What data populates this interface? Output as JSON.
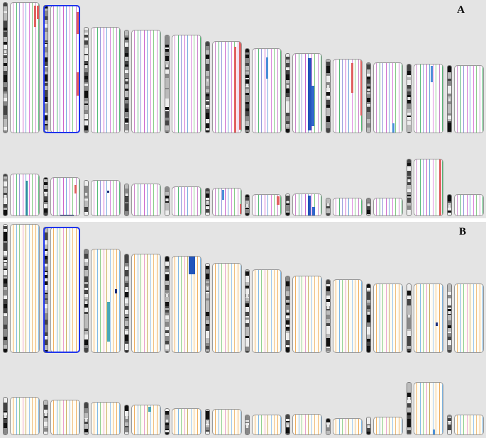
{
  "panels": [
    {
      "label": "A",
      "palette": [
        "#cc88cc",
        "#55bb77",
        "#9999dd",
        "#cc66cc",
        "#77aadd",
        "#dd88dd",
        "#88cc88"
      ],
      "bg": "#ffffff",
      "rows": [
        {
          "chromosomes": [
            {
              "h": 1.0,
              "w": 1.0,
              "features": [
                {
                  "c": "#e06060",
                  "t": 0.02,
                  "b": 0.18,
                  "x": 0.78,
                  "w": 0.08
                },
                {
                  "c": "#e06060",
                  "t": 0.02,
                  "b": 0.12,
                  "x": 0.88,
                  "w": 0.06
                }
              ]
            },
            {
              "h": 0.98,
              "w": 1.0,
              "selected": true,
              "features": [
                {
                  "c": "#e06060",
                  "t": 0.05,
                  "b": 0.22,
                  "x": 0.85,
                  "w": 0.08
                },
                {
                  "c": "#e06060",
                  "t": 0.52,
                  "b": 0.7,
                  "x": 0.85,
                  "w": 0.08
                }
              ]
            },
            {
              "h": 0.81,
              "w": 1.0,
              "features": []
            },
            {
              "h": 0.79,
              "w": 1.0,
              "features": []
            },
            {
              "h": 0.75,
              "w": 1.0,
              "features": []
            },
            {
              "h": 0.7,
              "w": 1.0,
              "features": [
                {
                  "c": "#e06060",
                  "t": 0.05,
                  "b": 1.0,
                  "x": 0.72,
                  "w": 0.08
                },
                {
                  "c": "#e06060",
                  "t": 0.0,
                  "b": 0.95,
                  "x": 0.88,
                  "w": 0.05
                }
              ]
            },
            {
              "h": 0.65,
              "w": 1.0,
              "features": [
                {
                  "c": "#4a8fd8",
                  "t": 0.1,
                  "b": 0.35,
                  "x": 0.46,
                  "w": 0.08
                }
              ]
            },
            {
              "h": 0.61,
              "w": 1.0,
              "features": [
                {
                  "c": "#2255bb",
                  "t": 0.05,
                  "b": 0.95,
                  "x": 0.5,
                  "w": 0.12
                },
                {
                  "c": "#3366cc",
                  "t": 0.4,
                  "b": 0.9,
                  "x": 0.62,
                  "w": 0.1
                }
              ]
            },
            {
              "h": 0.57,
              "w": 1.0,
              "features": [
                {
                  "c": "#e06060",
                  "t": 0.05,
                  "b": 0.45,
                  "x": 0.6,
                  "w": 0.08
                },
                {
                  "c": "#e06060",
                  "t": 0.0,
                  "b": 0.75,
                  "x": 0.9,
                  "w": 0.06
                }
              ]
            },
            {
              "h": 0.54,
              "w": 1.0,
              "features": [
                {
                  "c": "#4a8fd8",
                  "t": 0.85,
                  "b": 1.0,
                  "x": 0.62,
                  "w": 0.08
                }
              ]
            },
            {
              "h": 0.53,
              "w": 1.0,
              "features": [
                {
                  "c": "#4a8fd8",
                  "t": 0.02,
                  "b": 0.25,
                  "x": 0.55,
                  "w": 0.07
                }
              ]
            },
            {
              "h": 0.52,
              "w": 1.0,
              "features": []
            }
          ]
        },
        {
          "chromosomes": [
            {
              "h": 0.53,
              "w": 1.0,
              "features": [
                {
                  "c": "#2c8fa0",
                  "t": 0.15,
                  "b": 0.98,
                  "x": 0.5,
                  "w": 0.05
                }
              ]
            },
            {
              "h": 0.49,
              "w": 1.0,
              "features": [
                {
                  "c": "#e06060",
                  "t": 0.18,
                  "b": 0.4,
                  "x": 0.78,
                  "w": 0.08
                },
                {
                  "c": "#1a2d7a",
                  "t": 0.95,
                  "b": 1.0,
                  "x": 0.3,
                  "w": 0.45
                }
              ]
            },
            {
              "h": 0.45,
              "w": 1.0,
              "features": [
                {
                  "c": "#1a2d7a",
                  "t": 0.28,
                  "b": 0.33,
                  "x": 0.52,
                  "w": 0.06
                }
              ]
            },
            {
              "h": 0.41,
              "w": 1.0,
              "features": []
            },
            {
              "h": 0.37,
              "w": 1.0,
              "features": []
            },
            {
              "h": 0.35,
              "w": 1.0,
              "features": [
                {
                  "c": "#4a8fd8",
                  "t": 0.05,
                  "b": 0.4,
                  "x": 0.3,
                  "w": 0.08
                },
                {
                  "c": "#e06060",
                  "t": 0.55,
                  "b": 0.9,
                  "x": 0.9,
                  "w": 0.06
                }
              ]
            },
            {
              "h": 0.27,
              "w": 1.0,
              "features": [
                {
                  "c": "#e06060",
                  "t": 0.05,
                  "b": 0.45,
                  "x": 0.8,
                  "w": 0.1
                }
              ]
            },
            {
              "h": 0.28,
              "w": 1.0,
              "features": [
                {
                  "c": "#2255bb",
                  "t": 0.05,
                  "b": 0.95,
                  "x": 0.5,
                  "w": 0.1
                },
                {
                  "c": "#3366cc",
                  "t": 0.55,
                  "b": 0.95,
                  "x": 0.65,
                  "w": 0.1
                }
              ]
            },
            {
              "h": 0.23,
              "w": 1.0,
              "features": []
            },
            {
              "h": 0.23,
              "w": 1.0,
              "features": []
            },
            {
              "h": 0.72,
              "w": 1.0,
              "features": [
                {
                  "c": "#e06060",
                  "t": 0.0,
                  "b": 1.0,
                  "x": 0.84,
                  "w": 0.07
                }
              ]
            },
            {
              "h": 0.27,
              "w": 1.0,
              "features": []
            }
          ]
        }
      ]
    },
    {
      "label": "B",
      "palette": [
        "#f0b060",
        "#7fb8e8",
        "#90d090",
        "#e8a0d0",
        "#c8b060",
        "#a0c8f0",
        "#f0c080"
      ],
      "bg": "#fffcf4",
      "rows": [
        {
          "chromosomes": [
            {
              "h": 1.0,
              "w": 1.0,
              "features": []
            },
            {
              "h": 0.98,
              "w": 1.0,
              "selected": true,
              "features": []
            },
            {
              "h": 0.81,
              "w": 1.0,
              "features": [
                {
                  "c": "#4aa8b8",
                  "t": 0.5,
                  "b": 0.88,
                  "x": 0.52,
                  "w": 0.1
                },
                {
                  "c": "#1a2d7a",
                  "t": 0.38,
                  "b": 0.42,
                  "x": 0.78,
                  "w": 0.06
                }
              ]
            },
            {
              "h": 0.77,
              "w": 1.0,
              "features": []
            },
            {
              "h": 0.75,
              "w": 1.0,
              "features": [
                {
                  "c": "#2255bb",
                  "t": 0.0,
                  "b": 0.18,
                  "x": 0.55,
                  "w": 0.22
                }
              ]
            },
            {
              "h": 0.7,
              "w": 1.0,
              "features": []
            },
            {
              "h": 0.65,
              "w": 1.0,
              "features": []
            },
            {
              "h": 0.6,
              "w": 1.0,
              "features": []
            },
            {
              "h": 0.57,
              "w": 1.0,
              "features": []
            },
            {
              "h": 0.54,
              "w": 1.0,
              "features": []
            },
            {
              "h": 0.54,
              "w": 1.0,
              "features": [
                {
                  "c": "#1a2d7a",
                  "t": 0.55,
                  "b": 0.6,
                  "x": 0.72,
                  "w": 0.06
                }
              ]
            },
            {
              "h": 0.54,
              "w": 1.0,
              "features": []
            }
          ]
        },
        {
          "chromosomes": [
            {
              "h": 0.49,
              "w": 1.0,
              "features": []
            },
            {
              "h": 0.45,
              "w": 1.0,
              "features": [
                {
                  "c": "#1a2d7a",
                  "t": 0.95,
                  "b": 1.0,
                  "x": 0.55,
                  "w": 0.06
                }
              ]
            },
            {
              "h": 0.42,
              "w": 1.0,
              "features": []
            },
            {
              "h": 0.39,
              "w": 1.0,
              "features": [
                {
                  "c": "#4aa8b8",
                  "t": 0.05,
                  "b": 0.22,
                  "x": 0.55,
                  "w": 0.1
                }
              ]
            },
            {
              "h": 0.34,
              "w": 1.0,
              "features": []
            },
            {
              "h": 0.33,
              "w": 1.0,
              "features": []
            },
            {
              "h": 0.26,
              "w": 1.0,
              "features": []
            },
            {
              "h": 0.27,
              "w": 1.0,
              "features": []
            },
            {
              "h": 0.22,
              "w": 1.0,
              "features": []
            },
            {
              "h": 0.23,
              "w": 1.0,
              "features": []
            },
            {
              "h": 0.68,
              "w": 1.0,
              "features": [
                {
                  "c": "#4a8fd8",
                  "t": 0.88,
                  "b": 1.0,
                  "x": 0.62,
                  "w": 0.08
                }
              ]
            },
            {
              "h": 0.26,
              "w": 1.0,
              "features": []
            }
          ]
        }
      ]
    }
  ]
}
